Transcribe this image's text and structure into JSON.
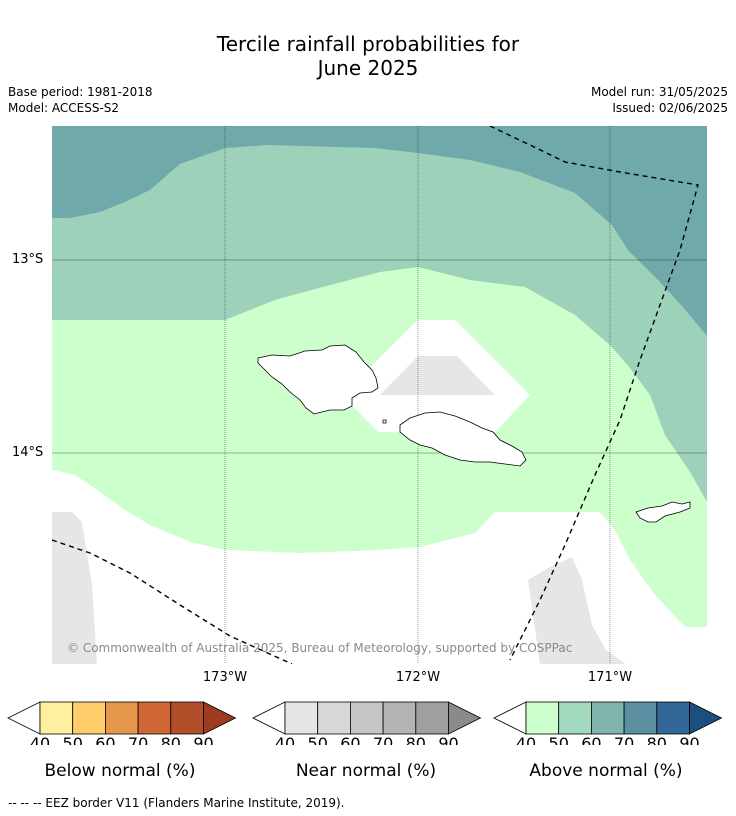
{
  "title": {
    "line1": "Tercile rainfall probabilities for",
    "line2": "June 2025"
  },
  "meta": {
    "base_period": "Base period: 1981-2018",
    "model": "Model: ACCESS-S2",
    "model_run": "Model run: 31/05/2025",
    "issued": "Issued: 02/06/2025"
  },
  "map": {
    "lat_labels": [
      "13°S",
      "14°S"
    ],
    "lon_labels": [
      "173°W",
      "172°W",
      "171°W"
    ],
    "copyright": "© Commonwealth of Australia 2025, Bureau of Meteorology, supported by COSPPac",
    "colors": {
      "above_40": "#ccffcc",
      "above_50": "#9ed1b9",
      "above_60": "#6fa9aa",
      "near_50": "#e6e6e6",
      "land_outline": "#000000"
    }
  },
  "colorbars": [
    {
      "label": "Below normal (%)",
      "ticks": [
        "40",
        "50",
        "60",
        "70",
        "80",
        "90"
      ],
      "colors": [
        "#fff0a0",
        "#ffce6a",
        "#e5984b",
        "#d06634",
        "#b34e2a",
        "#9e3a22"
      ]
    },
    {
      "label": "Near normal (%)",
      "ticks": [
        "40",
        "50",
        "60",
        "70",
        "80",
        "90"
      ],
      "colors": [
        "#e6e6e6",
        "#d8d8d8",
        "#c6c6c6",
        "#b3b3b3",
        "#9f9f9f",
        "#8a8a8a"
      ]
    },
    {
      "label": "Above normal (%)",
      "ticks": [
        "40",
        "50",
        "60",
        "70",
        "80",
        "90"
      ],
      "colors": [
        "#ccffcc",
        "#a3d9be",
        "#7fb5ad",
        "#5a90a2",
        "#336699",
        "#1a4f80"
      ]
    }
  ],
  "footer": "--  --  -- EEZ border V11 (Flanders Marine Institute, 2019)."
}
